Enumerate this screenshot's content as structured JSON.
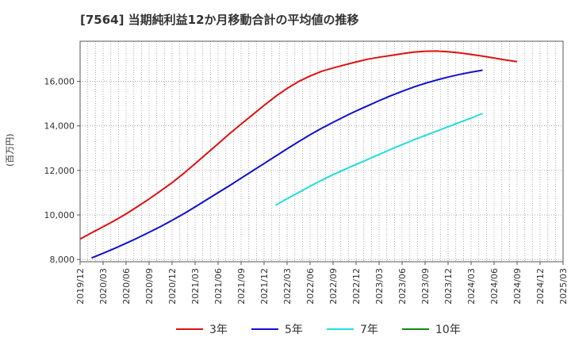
{
  "chart_data": {
    "type": "line",
    "title": "[7564]  当期純利益12か月移動合計の平均値の推移",
    "xlabel": "",
    "ylabel": "(百万円)",
    "ylim": [
      7900,
      17800
    ],
    "yticks": [
      8000,
      10000,
      12000,
      14000,
      16000
    ],
    "ytick_labels": [
      "8,000",
      "10,000",
      "12,000",
      "14,000",
      "16,000"
    ],
    "xtick_labels": [
      "2019/12",
      "2020/03",
      "2020/06",
      "2020/09",
      "2020/12",
      "2021/03",
      "2021/06",
      "2021/09",
      "2021/12",
      "2022/03",
      "2022/06",
      "2022/09",
      "2022/12",
      "2023/03",
      "2023/06",
      "2023/09",
      "2023/12",
      "2024/03",
      "2024/06",
      "2024/09",
      "2024/12",
      "2025/03"
    ],
    "grid": true,
    "legend_position": "bottom",
    "series": [
      {
        "name": "3年",
        "color": "#dd1111",
        "start_index": 0,
        "values": [
          8920,
          9200,
          9470,
          9750,
          10050,
          10380,
          10720,
          11080,
          11450,
          11860,
          12300,
          12750,
          13200,
          13650,
          14080,
          14500,
          14920,
          15320,
          15680,
          15990,
          16240,
          16450,
          16600,
          16740,
          16870,
          16990,
          17080,
          17160,
          17240,
          17310,
          17350,
          17360,
          17330,
          17280,
          17210,
          17130,
          17050,
          16960,
          16880
        ]
      },
      {
        "name": "5年",
        "color": "#1111cc",
        "start_index": 1,
        "values": [
          8070,
          8280,
          8500,
          8730,
          8970,
          9220,
          9480,
          9760,
          10050,
          10360,
          10680,
          11000,
          11320,
          11650,
          11980,
          12310,
          12640,
          12970,
          13290,
          13600,
          13890,
          14160,
          14420,
          14670,
          14900,
          15130,
          15350,
          15550,
          15740,
          15910,
          16060,
          16190,
          16310,
          16410,
          16500
        ]
      },
      {
        "name": "7年",
        "color": "#22dddd",
        "start_index": 17,
        "values": [
          10440,
          10730,
          11010,
          11290,
          11560,
          11810,
          12040,
          12270,
          12490,
          12720,
          12940,
          13160,
          13370,
          13570,
          13760,
          13960,
          14160,
          14350,
          14560
        ]
      },
      {
        "name": "10年",
        "color": "#118811",
        "start_index": 0,
        "values": []
      }
    ]
  }
}
